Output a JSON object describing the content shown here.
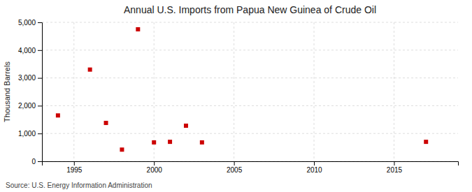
{
  "chart_data": {
    "type": "scatter",
    "title": "Annual U.S. Imports from Papua New Guinea of Crude Oil",
    "ylabel": "Thousand Barrels",
    "annotations": [
      "Source: U.S. Energy Information Administration"
    ],
    "x": [
      1994,
      1996,
      1997,
      1998,
      1999,
      2000,
      2001,
      2002,
      2003,
      2017
    ],
    "values": [
      1650,
      3300,
      1380,
      420,
      4750,
      680,
      700,
      1280,
      680,
      700
    ],
    "color": "#cc0000",
    "marker": "square",
    "xlim": [
      1993,
      2019
    ],
    "xticks": [
      1995,
      2000,
      2005,
      2010,
      2015
    ],
    "ylim": [
      0,
      5000
    ],
    "yticks": [
      0,
      {
        "value": 1000,
        "label": "1,000"
      },
      {
        "value": 2000,
        "label": "2,000"
      },
      {
        "value": 3000,
        "label": "3,000"
      },
      {
        "value": 4000,
        "label": "4,000"
      },
      {
        "value": 5000,
        "label": "5,000"
      }
    ],
    "grid": true
  }
}
